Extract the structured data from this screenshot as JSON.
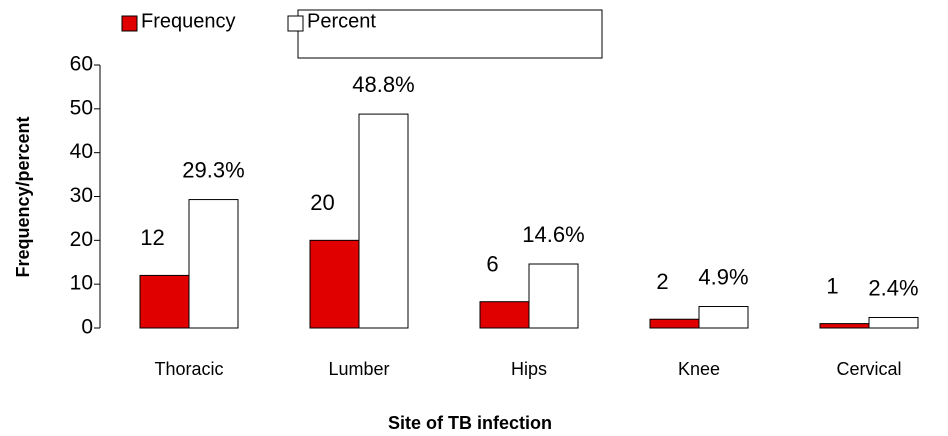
{
  "chart_data": {
    "type": "bar",
    "x_label": "Site of TB infection",
    "y_label": "Frequency/percent",
    "categories": [
      "Thoracic",
      "Lumber",
      "Hips",
      "Knee",
      "Cervical"
    ],
    "series": [
      {
        "name": "Frequency",
        "color": "#e00000",
        "values": [
          12,
          20,
          6,
          2,
          1
        ]
      },
      {
        "name": "Percent",
        "color": "#ffffff",
        "values": [
          29.3,
          48.8,
          14.6,
          4.9,
          2.4
        ],
        "value_labels": [
          "29.3%",
          "48.8%",
          "14.6%",
          "4.9%",
          "2.4%"
        ]
      }
    ],
    "ylim": [
      0,
      60
    ],
    "yticks": [
      0,
      10,
      20,
      30,
      40,
      50,
      60
    ],
    "grid": false
  }
}
